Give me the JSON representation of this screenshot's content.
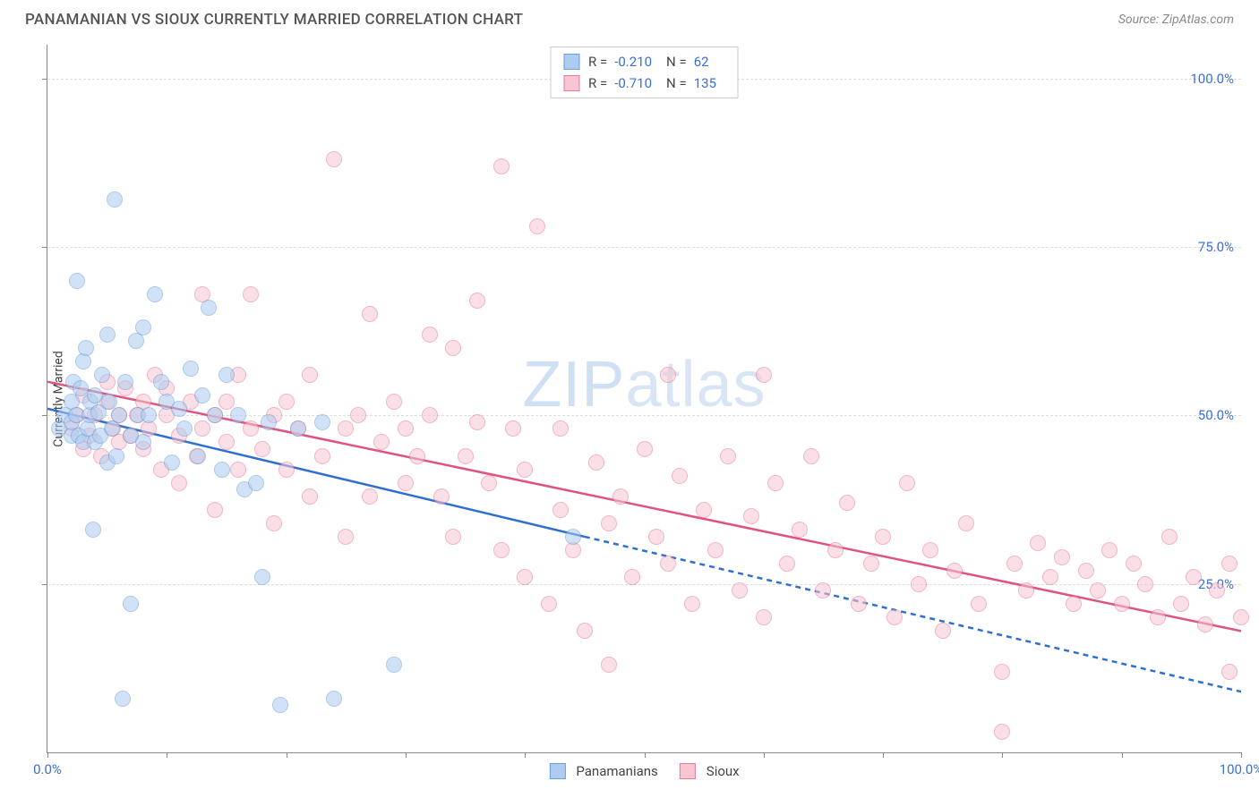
{
  "title": "PANAMANIAN VS SIOUX CURRENTLY MARRIED CORRELATION CHART",
  "source": "Source: ZipAtlas.com",
  "watermark": {
    "bold": "ZIP",
    "thin": "atlas"
  },
  "y_axis_label": "Currently Married",
  "chart": {
    "type": "scatter",
    "xlim": [
      0,
      100
    ],
    "ylim": [
      0,
      105
    ],
    "x_ticks": [
      0,
      10,
      20,
      30,
      40,
      50,
      60,
      70,
      80,
      90,
      100
    ],
    "x_tick_labels": {
      "0": "0.0%",
      "100": "100.0%"
    },
    "y_gridlines": [
      25,
      50,
      75,
      100
    ],
    "y_tick_labels": {
      "25": "25.0%",
      "50": "50.0%",
      "75": "75.0%",
      "100": "100.0%"
    },
    "background_color": "#ffffff",
    "grid_color": "#dddddd",
    "axis_color": "#888888",
    "tick_label_color": "#3b6fd6",
    "marker_radius": 9,
    "marker_opacity": 0.55,
    "marker_border_width": 1.5
  },
  "series": {
    "panamanians": {
      "label": "Panamanians",
      "fill": "#aeccf0",
      "stroke": "#6a9ede",
      "line_color": "#2f6fd0",
      "legend_R": "-0.210",
      "legend_N": "62",
      "regression": {
        "x1": 0,
        "y1": 51,
        "x2_solid": 45,
        "y2_solid": 32,
        "x2_dash": 100,
        "y2_dash": 9
      },
      "points": [
        [
          1,
          48
        ],
        [
          1.5,
          50
        ],
        [
          2,
          47
        ],
        [
          2,
          49
        ],
        [
          2,
          52
        ],
        [
          2.2,
          55
        ],
        [
          2.4,
          50
        ],
        [
          2.5,
          70
        ],
        [
          2.6,
          47
        ],
        [
          2.8,
          54
        ],
        [
          3,
          46
        ],
        [
          3,
          58
        ],
        [
          3.2,
          60
        ],
        [
          3.4,
          48
        ],
        [
          3.5,
          50
        ],
        [
          3.6,
          52
        ],
        [
          3.8,
          33
        ],
        [
          4,
          46
        ],
        [
          4,
          53
        ],
        [
          4.3,
          50.5
        ],
        [
          4.4,
          47
        ],
        [
          4.6,
          56
        ],
        [
          5,
          43
        ],
        [
          5,
          62
        ],
        [
          5.2,
          52
        ],
        [
          5.4,
          48
        ],
        [
          5.6,
          82
        ],
        [
          5.8,
          44
        ],
        [
          6,
          50
        ],
        [
          6.3,
          8
        ],
        [
          6.5,
          55
        ],
        [
          7,
          22
        ],
        [
          7,
          47
        ],
        [
          7.4,
          61
        ],
        [
          7.6,
          50
        ],
        [
          8,
          46
        ],
        [
          8,
          63
        ],
        [
          8.5,
          50
        ],
        [
          9,
          68
        ],
        [
          9.5,
          55
        ],
        [
          10,
          52
        ],
        [
          10.4,
          43
        ],
        [
          11,
          51
        ],
        [
          11.5,
          48
        ],
        [
          12,
          57
        ],
        [
          12.6,
          44
        ],
        [
          13,
          53
        ],
        [
          13.5,
          66
        ],
        [
          14,
          50
        ],
        [
          14.6,
          42
        ],
        [
          15,
          56
        ],
        [
          16,
          50
        ],
        [
          16.5,
          39
        ],
        [
          17.5,
          40
        ],
        [
          18,
          26
        ],
        [
          18.5,
          49
        ],
        [
          19.5,
          7
        ],
        [
          21,
          48
        ],
        [
          23,
          49
        ],
        [
          24,
          8
        ],
        [
          29,
          13
        ],
        [
          44,
          32
        ]
      ]
    },
    "sioux": {
      "label": "Sioux",
      "fill": "#f7c6d2",
      "stroke": "#e77a9a",
      "line_color": "#e0537e",
      "legend_R": "-0.710",
      "legend_N": "135",
      "regression": {
        "x1": 0,
        "y1": 55,
        "x2_solid": 100,
        "y2_solid": 18
      },
      "points": [
        [
          2,
          48
        ],
        [
          2.5,
          50
        ],
        [
          3,
          45
        ],
        [
          3,
          53
        ],
        [
          3.5,
          47
        ],
        [
          4,
          50
        ],
        [
          4.5,
          44
        ],
        [
          5,
          52
        ],
        [
          5,
          55
        ],
        [
          5.5,
          48
        ],
        [
          6,
          46
        ],
        [
          6,
          50
        ],
        [
          6.5,
          54
        ],
        [
          7,
          47
        ],
        [
          7.5,
          50
        ],
        [
          8,
          45
        ],
        [
          8,
          52
        ],
        [
          8.5,
          48
        ],
        [
          9,
          56
        ],
        [
          9.5,
          42
        ],
        [
          10,
          50
        ],
        [
          10,
          54
        ],
        [
          11,
          47
        ],
        [
          11,
          40
        ],
        [
          12,
          52
        ],
        [
          12.5,
          44
        ],
        [
          13,
          48
        ],
        [
          13,
          68
        ],
        [
          14,
          50
        ],
        [
          14,
          36
        ],
        [
          15,
          46
        ],
        [
          15,
          52
        ],
        [
          16,
          42
        ],
        [
          16,
          56
        ],
        [
          17,
          48
        ],
        [
          17,
          68
        ],
        [
          18,
          45
        ],
        [
          19,
          50
        ],
        [
          19,
          34
        ],
        [
          20,
          52
        ],
        [
          20,
          42
        ],
        [
          21,
          48
        ],
        [
          22,
          56
        ],
        [
          22,
          38
        ],
        [
          23,
          44
        ],
        [
          24,
          88
        ],
        [
          25,
          48
        ],
        [
          25,
          32
        ],
        [
          26,
          50
        ],
        [
          27,
          65
        ],
        [
          27,
          38
        ],
        [
          28,
          46
        ],
        [
          29,
          52
        ],
        [
          30,
          40
        ],
        [
          30,
          48
        ],
        [
          31,
          44
        ],
        [
          32,
          50
        ],
        [
          32,
          62
        ],
        [
          33,
          38
        ],
        [
          34,
          60
        ],
        [
          34,
          32
        ],
        [
          35,
          44
        ],
        [
          36,
          49
        ],
        [
          36,
          67
        ],
        [
          37,
          40
        ],
        [
          38,
          87
        ],
        [
          38,
          30
        ],
        [
          39,
          48
        ],
        [
          40,
          42
        ],
        [
          40,
          26
        ],
        [
          41,
          78
        ],
        [
          42,
          22
        ],
        [
          43,
          36
        ],
        [
          43,
          48
        ],
        [
          44,
          30
        ],
        [
          45,
          18
        ],
        [
          46,
          43
        ],
        [
          47,
          34
        ],
        [
          47,
          13
        ],
        [
          48,
          38
        ],
        [
          49,
          26
        ],
        [
          50,
          45
        ],
        [
          51,
          32
        ],
        [
          52,
          28
        ],
        [
          52,
          56
        ],
        [
          53,
          41
        ],
        [
          54,
          22
        ],
        [
          55,
          36
        ],
        [
          56,
          30
        ],
        [
          57,
          44
        ],
        [
          58,
          24
        ],
        [
          59,
          35
        ],
        [
          60,
          56
        ],
        [
          60,
          20
        ],
        [
          61,
          40
        ],
        [
          62,
          28
        ],
        [
          63,
          33
        ],
        [
          64,
          44
        ],
        [
          65,
          24
        ],
        [
          66,
          30
        ],
        [
          67,
          37
        ],
        [
          68,
          22
        ],
        [
          69,
          28
        ],
        [
          70,
          32
        ],
        [
          71,
          20
        ],
        [
          72,
          40
        ],
        [
          73,
          25
        ],
        [
          74,
          30
        ],
        [
          75,
          18
        ],
        [
          76,
          27
        ],
        [
          77,
          34
        ],
        [
          78,
          22
        ],
        [
          80,
          12
        ],
        [
          81,
          28
        ],
        [
          82,
          24
        ],
        [
          83,
          31
        ],
        [
          84,
          26
        ],
        [
          85,
          29
        ],
        [
          86,
          22
        ],
        [
          87,
          27
        ],
        [
          88,
          24
        ],
        [
          89,
          30
        ],
        [
          90,
          22
        ],
        [
          91,
          28
        ],
        [
          92,
          25
        ],
        [
          93,
          20
        ],
        [
          94,
          32
        ],
        [
          95,
          22
        ],
        [
          96,
          26
        ],
        [
          97,
          19
        ],
        [
          98,
          24
        ],
        [
          99,
          28
        ],
        [
          80,
          3
        ],
        [
          99,
          12
        ],
        [
          100,
          20
        ]
      ]
    }
  },
  "legend_labels": {
    "R": "R =",
    "N": "N ="
  }
}
